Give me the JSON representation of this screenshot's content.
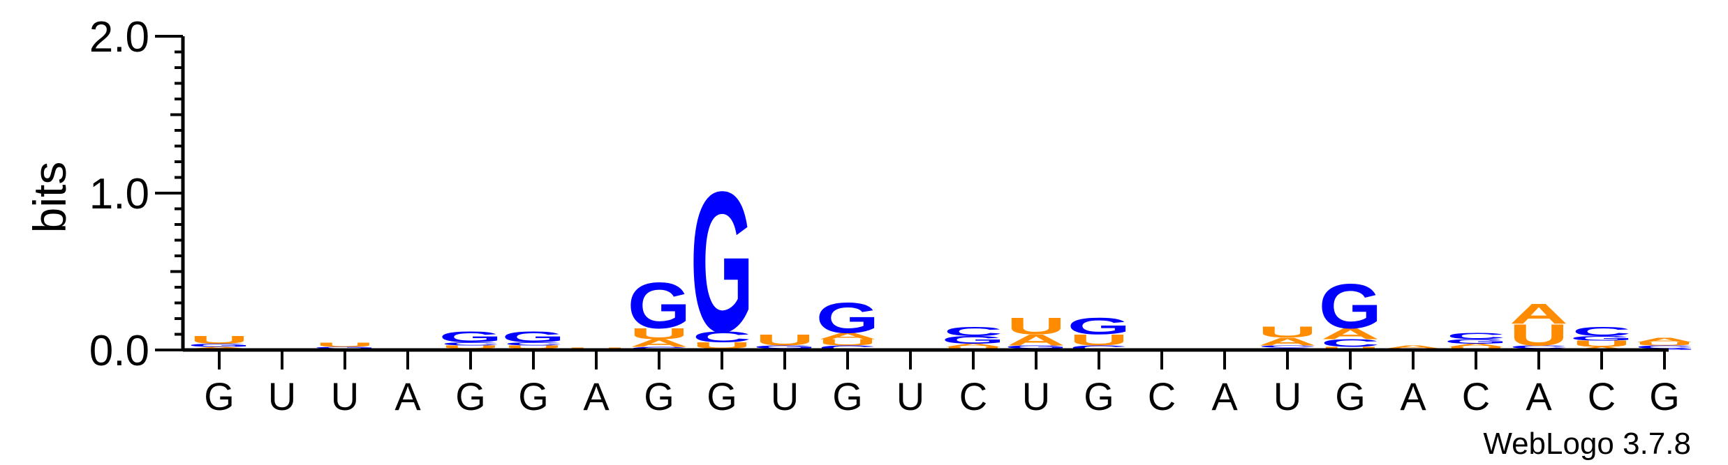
{
  "chart_data": {
    "type": "sequence-logo",
    "ylabel": "bits",
    "ylim": [
      0,
      2
    ],
    "yticks": [
      "0.0",
      "1.0",
      "2.0"
    ],
    "credit": "WebLogo 3.7.8",
    "colors": {
      "A": "#ff8c00",
      "U": "#ff8c00",
      "G": "#0000ff",
      "C": "#0000ff"
    },
    "positions": [
      {
        "label": "G",
        "stack": [
          [
            "C",
            0.01
          ],
          [
            "A",
            0.01
          ],
          [
            "G",
            0.02
          ],
          [
            "U",
            0.05
          ]
        ]
      },
      {
        "label": "U",
        "stack": []
      },
      {
        "label": "U",
        "stack": [
          [
            "A",
            0.01
          ],
          [
            "G",
            0.01
          ],
          [
            "U",
            0.025
          ]
        ]
      },
      {
        "label": "A",
        "stack": []
      },
      {
        "label": "G",
        "stack": [
          [
            "A",
            0.01
          ],
          [
            "U",
            0.02
          ],
          [
            "C",
            0.02
          ],
          [
            "G",
            0.07
          ]
        ]
      },
      {
        "label": "G",
        "stack": [
          [
            "A",
            0.01
          ],
          [
            "U",
            0.02
          ],
          [
            "C",
            0.02
          ],
          [
            "G",
            0.07
          ]
        ]
      },
      {
        "label": "A",
        "stack": [
          [
            "G",
            0.005
          ],
          [
            "U",
            0.01
          ]
        ]
      },
      {
        "label": "G",
        "stack": [
          [
            "C",
            0.02
          ],
          [
            "A",
            0.05
          ],
          [
            "U",
            0.07
          ],
          [
            "G",
            0.3
          ]
        ]
      },
      {
        "label": "G",
        "stack": [
          [
            "A",
            0.01
          ],
          [
            "U",
            0.04
          ],
          [
            "C",
            0.07
          ],
          [
            "G",
            0.92
          ]
        ]
      },
      {
        "label": "U",
        "stack": [
          [
            "A",
            0.01
          ],
          [
            "G",
            0.02
          ],
          [
            "U",
            0.07
          ]
        ]
      },
      {
        "label": "G",
        "stack": [
          [
            "C",
            0.03
          ],
          [
            "U",
            0.04
          ],
          [
            "A",
            0.04
          ],
          [
            "G",
            0.2
          ]
        ]
      },
      {
        "label": "U",
        "stack": []
      },
      {
        "label": "C",
        "stack": [
          [
            "U",
            0.02
          ],
          [
            "A",
            0.02
          ],
          [
            "G",
            0.05
          ],
          [
            "C",
            0.06
          ]
        ]
      },
      {
        "label": "U",
        "stack": [
          [
            "C",
            0.01
          ],
          [
            "G",
            0.02
          ],
          [
            "A",
            0.07
          ],
          [
            "U",
            0.11
          ]
        ]
      },
      {
        "label": "G",
        "stack": [
          [
            "C",
            0.03
          ],
          [
            "U",
            0.07
          ],
          [
            "G",
            0.11
          ]
        ]
      },
      {
        "label": "C",
        "stack": []
      },
      {
        "label": "A",
        "stack": []
      },
      {
        "label": "U",
        "stack": [
          [
            "G",
            0.015
          ],
          [
            "C",
            0.015
          ],
          [
            "A",
            0.05
          ],
          [
            "U",
            0.07
          ]
        ]
      },
      {
        "label": "G",
        "stack": [
          [
            "U",
            0.02
          ],
          [
            "C",
            0.05
          ],
          [
            "A",
            0.07
          ],
          [
            "G",
            0.29
          ]
        ]
      },
      {
        "label": "A",
        "stack": [
          [
            "G",
            0.01
          ],
          [
            "A",
            0.02
          ]
        ]
      },
      {
        "label": "C",
        "stack": [
          [
            "U",
            0.02
          ],
          [
            "A",
            0.02
          ],
          [
            "G",
            0.03
          ],
          [
            "C",
            0.04
          ]
        ]
      },
      {
        "label": "A",
        "stack": [
          [
            "G",
            0.01
          ],
          [
            "C",
            0.02
          ],
          [
            "U",
            0.14
          ],
          [
            "A",
            0.13
          ]
        ]
      },
      {
        "label": "C",
        "stack": [
          [
            "A",
            0.02
          ],
          [
            "U",
            0.04
          ],
          [
            "G",
            0.03
          ],
          [
            "C",
            0.06
          ]
        ]
      },
      {
        "label": "G",
        "stack": [
          [
            "G",
            0.01
          ],
          [
            "C",
            0.02
          ],
          [
            "U",
            0.02
          ],
          [
            "A",
            0.03
          ]
        ]
      }
    ]
  }
}
